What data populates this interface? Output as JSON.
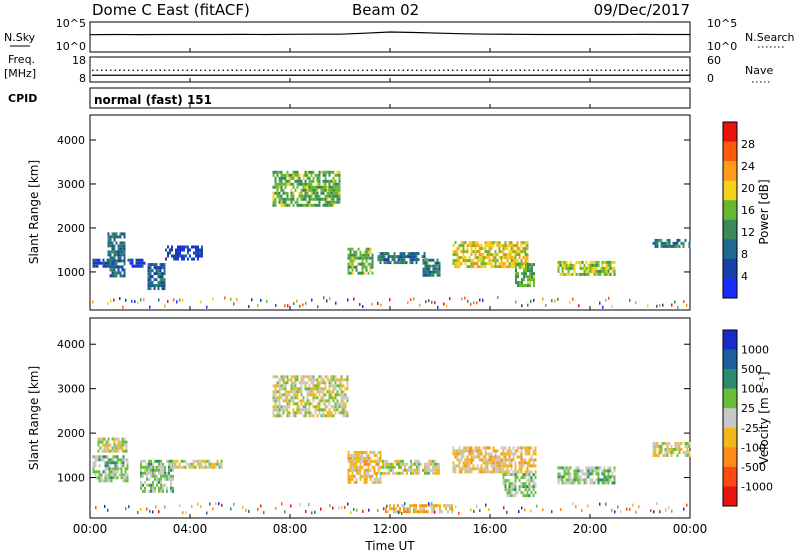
{
  "header": {
    "radar": "Dome C East (fitACF)",
    "beam": "Beam 02",
    "date": "09/Dec/2017"
  },
  "nsky_panel": {
    "left_label": "N.Sky",
    "left_ticks": [
      "10^5",
      "10^0"
    ],
    "right_ticks": [
      "10^5",
      "10^0"
    ],
    "right_label": "N.Search"
  },
  "freq_panel": {
    "left_label_line1": "Freq.",
    "left_label_line2": "[MHz]",
    "left_ticks": [
      "18",
      "8"
    ],
    "right_ticks": [
      "60",
      "0"
    ],
    "right_label": "Nave"
  },
  "cpid_panel": {
    "label": "CPID",
    "mode": "normal (fast) 151"
  },
  "power_panel": {
    "ylabel": "Slant Range [km]",
    "colorbar_label": "Power [dB]",
    "colorbar_ticks": [
      "4",
      "8",
      "12",
      "16",
      "20",
      "24",
      "28"
    ],
    "colorbar_colors": [
      "#1a2bff",
      "#1a3fa8",
      "#1f6a8c",
      "#3a8a5a",
      "#66b832",
      "#f2d21c",
      "#ff9a1a",
      "#ff5a10",
      "#e8140f"
    ]
  },
  "velocity_panel": {
    "ylabel": "Slant Range [km]",
    "colorbar_label": "Velocity [m s⁻¹]",
    "colorbar_ticks": [
      "1000",
      "500",
      "100",
      "25",
      "-25",
      "-100",
      "-500",
      "-1000"
    ],
    "colorbar_colors": [
      "#1a2bcc",
      "#1f5fa0",
      "#2c8a6e",
      "#6abf3a",
      "#c8c8c8",
      "#f0b81c",
      "#ff8a1a",
      "#ff4a14",
      "#e8140f"
    ]
  },
  "xaxis": {
    "label": "Time UT",
    "ticks": [
      "00:00",
      "04:00",
      "08:00",
      "12:00",
      "16:00",
      "20:00",
      "00:00"
    ]
  },
  "chart_data": [
    {
      "type": "line",
      "name": "nsky_nsearch",
      "x": [
        0,
        1,
        2,
        3,
        4,
        5,
        6,
        7,
        8,
        9,
        10,
        11,
        12,
        13,
        14,
        15,
        16,
        17,
        18,
        19,
        20,
        21,
        22,
        23,
        24
      ],
      "x_unit": "hours UT",
      "ylim": [
        1,
        100000
      ],
      "yscale": "log",
      "nsky": [
        800,
        900,
        850,
        900,
        880,
        900,
        920,
        900,
        950,
        1000,
        980,
        1500,
        2500,
        2000,
        1500,
        1200,
        1000,
        950,
        900,
        900,
        880,
        900,
        920,
        900,
        900
      ]
    },
    {
      "type": "line",
      "name": "freq_nave",
      "x_range": [
        0,
        24
      ],
      "ylim": [
        8,
        18
      ],
      "freq_mhz": 10.5,
      "nave": 28
    },
    {
      "type": "heatmap",
      "name": "power",
      "x_range": [
        0,
        24
      ],
      "ylim": [
        180,
        4500
      ],
      "yticks": [
        1000,
        2000,
        3000,
        4000
      ],
      "value_range": [
        0,
        30
      ],
      "regions": [
        {
          "t0": 0.1,
          "t1": 0.9,
          "r0": 1150,
          "r1": 1300,
          "v": 6
        },
        {
          "t0": 0.7,
          "t1": 1.4,
          "r0": 900,
          "r1": 1900,
          "v": 9
        },
        {
          "t0": 1.5,
          "t1": 2.3,
          "r0": 1150,
          "r1": 1300,
          "v": 4
        },
        {
          "t0": 2.3,
          "t1": 3.0,
          "r0": 600,
          "r1": 1200,
          "v": 8
        },
        {
          "t0": 3.0,
          "t1": 4.5,
          "r0": 1300,
          "r1": 1600,
          "v": 5
        },
        {
          "t0": 7.3,
          "t1": 10.0,
          "r0": 2500,
          "r1": 3300,
          "v": 14
        },
        {
          "t0": 10.3,
          "t1": 11.3,
          "r0": 950,
          "r1": 1550,
          "v": 14
        },
        {
          "t0": 11.5,
          "t1": 13.5,
          "r0": 1200,
          "r1": 1450,
          "v": 9
        },
        {
          "t0": 13.3,
          "t1": 14.0,
          "r0": 900,
          "r1": 1300,
          "v": 10
        },
        {
          "t0": 14.5,
          "t1": 17.5,
          "r0": 1150,
          "r1": 1700,
          "v": 18
        },
        {
          "t0": 17.0,
          "t1": 17.8,
          "r0": 700,
          "r1": 1200,
          "v": 14
        },
        {
          "t0": 18.7,
          "t1": 21.0,
          "r0": 950,
          "r1": 1250,
          "v": 16
        },
        {
          "t0": 22.5,
          "t1": 24.0,
          "r0": 1550,
          "r1": 1750,
          "v": 10
        }
      ]
    },
    {
      "type": "heatmap",
      "name": "velocity",
      "x_range": [
        0,
        24
      ],
      "ylim": [
        180,
        4500
      ],
      "yticks": [
        1000,
        2000,
        3000,
        4000
      ],
      "value_range": [
        -1000,
        1000
      ],
      "regions": [
        {
          "t0": 0.1,
          "t1": 1.5,
          "r0": 900,
          "r1": 1500,
          "v": 150
        },
        {
          "t0": 0.3,
          "t1": 1.5,
          "r0": 1600,
          "r1": 1900,
          "v": 0
        },
        {
          "t0": 2.0,
          "t1": 3.3,
          "r0": 700,
          "r1": 1400,
          "v": 150
        },
        {
          "t0": 3.3,
          "t1": 5.3,
          "r0": 1200,
          "r1": 1400,
          "v": 0
        },
        {
          "t0": 7.3,
          "t1": 10.3,
          "r0": 2400,
          "r1": 3300,
          "v": 0
        },
        {
          "t0": 10.3,
          "t1": 11.6,
          "r0": 900,
          "r1": 1600,
          "v": -200
        },
        {
          "t0": 11.6,
          "t1": 14.0,
          "r0": 1100,
          "r1": 1400,
          "v": 0
        },
        {
          "t0": 14.5,
          "t1": 17.8,
          "r0": 1150,
          "r1": 1700,
          "v": -150
        },
        {
          "t0": 16.5,
          "t1": 17.8,
          "r0": 600,
          "r1": 1100,
          "v": 150
        },
        {
          "t0": 18.7,
          "t1": 21.0,
          "r0": 900,
          "r1": 1250,
          "v": 150
        },
        {
          "t0": 11.8,
          "t1": 14.5,
          "r0": 200,
          "r1": 400,
          "v": -250
        },
        {
          "t0": 22.5,
          "t1": 24.0,
          "r0": 1500,
          "r1": 1800,
          "v": 0
        }
      ]
    }
  ]
}
